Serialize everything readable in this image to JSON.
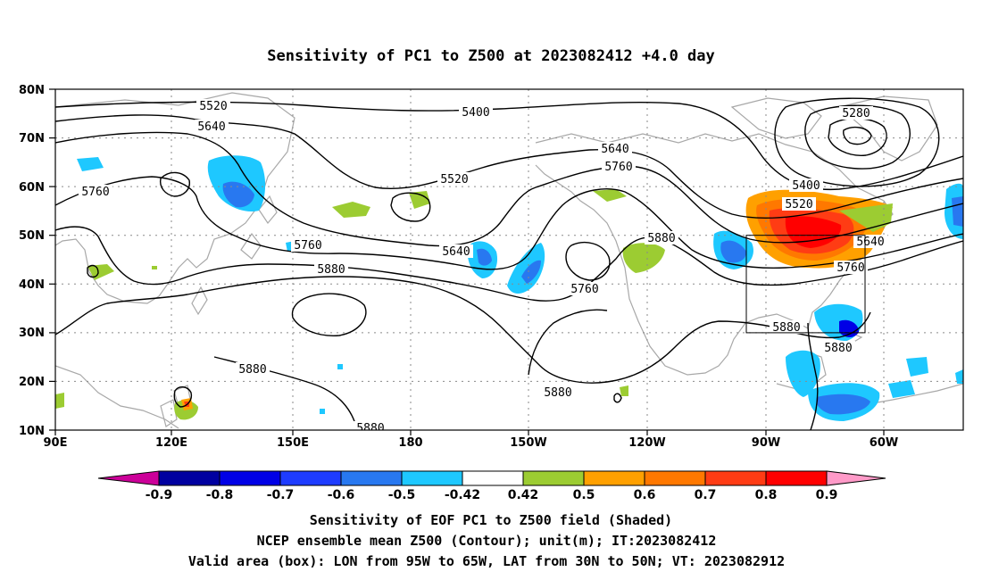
{
  "title": "Sensitivity of PC1 to Z500 at 2023082412 +4.0 day",
  "lat_ticks": [
    "80N",
    "70N",
    "60N",
    "50N",
    "40N",
    "30N",
    "20N",
    "10N"
  ],
  "lon_ticks": [
    "90E",
    "120E",
    "150E",
    "180",
    "150W",
    "120W",
    "90W",
    "60W"
  ],
  "contour_labels": [
    {
      "text": "5520"
    },
    {
      "text": "5640"
    },
    {
      "text": "5760"
    },
    {
      "text": "5400"
    },
    {
      "text": "5280"
    },
    {
      "text": "5640"
    },
    {
      "text": "5760"
    },
    {
      "text": "5520"
    },
    {
      "text": "5400"
    },
    {
      "text": "5520"
    },
    {
      "text": "5880"
    },
    {
      "text": "5640"
    },
    {
      "text": "5760"
    },
    {
      "text": "5760"
    },
    {
      "text": "5880"
    },
    {
      "text": "5640"
    },
    {
      "text": "5760"
    },
    {
      "text": "5880"
    },
    {
      "text": "5880"
    },
    {
      "text": "5880"
    },
    {
      "text": "5880"
    },
    {
      "text": "5880"
    }
  ],
  "colorbar": {
    "labels": [
      "-0.9",
      "-0.8",
      "-0.7",
      "-0.6",
      "-0.5",
      "-0.42",
      "0.42",
      "0.5",
      "0.6",
      "0.7",
      "0.8",
      "0.9"
    ],
    "colors": [
      "#cc0099",
      "#0000a0",
      "#0000e6",
      "#1e3cff",
      "#2878f0",
      "#1ec8ff",
      "#ffffff",
      "#9ccc32",
      "#ffa000",
      "#ff7800",
      "#ff3c14",
      "#ff0000",
      "#ff9ac8"
    ]
  },
  "shading_colors": {
    "neg_strong": "#0000e6",
    "neg_mid": "#2878f0",
    "neg_weak": "#1ec8ff",
    "pos_weak": "#9ccc32",
    "pos_mid": "#ffa000",
    "pos_strong": "#ff3c14",
    "pos_max": "#ff0000"
  },
  "valid_box": {
    "lon_west": -95,
    "lon_east": -65,
    "lat_south": 30,
    "lat_north": 50
  },
  "captions": [
    "Sensitivity of EOF PC1 to Z500 field (Shaded)",
    "NCEP ensemble mean Z500 (Contour); unit(m); IT:2023082412",
    "Valid area (box): LON from 95W to 65W, LAT from 30N to 50N; VT: 2023082912"
  ]
}
